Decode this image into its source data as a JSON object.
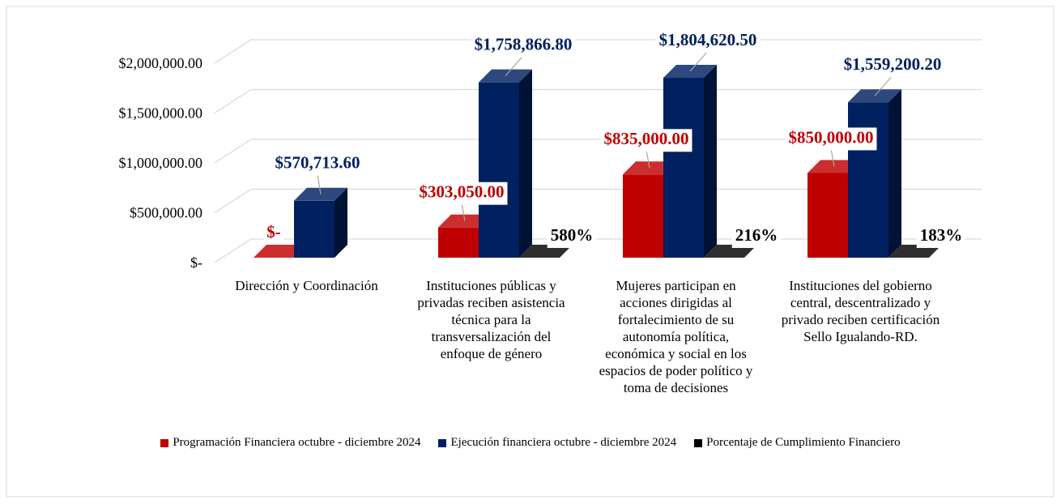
{
  "chart_data": {
    "type": "bar3d",
    "categories": [
      "Dirección y Coordinación",
      "Instituciones públicas y privadas reciben asistencia técnica para la transversalización del enfoque de género",
      "Mujeres participan en acciones dirigidas al fortalecimiento de su autonomía política, económica y social en los espacios de poder político y toma de decisiones",
      "Instituciones del gobierno central, descentralizado y privado reciben certificación Sello Igualando-RD."
    ],
    "series": [
      {
        "name": "Programación Financiera octubre - diciembre 2024",
        "color": "#c00000",
        "values": [
          0,
          303050,
          835000,
          850000
        ],
        "value_labels": [
          "$-",
          "$303,050.00",
          "$835,000.00",
          "$850,000.00"
        ]
      },
      {
        "name": "Ejecución financiera octubre - diciembre 2024",
        "color": "#002060",
        "values": [
          570713.6,
          1758866.8,
          1804620.5,
          1559200.2
        ],
        "value_labels": [
          "$570,713.60",
          "$1,758,866.80",
          "$1,804,620.50",
          "$1,559,200.20"
        ]
      },
      {
        "name": "Porcentaje de Cumplimiento Financiero",
        "color": "#000000",
        "values": [
          null,
          5.8,
          2.16,
          1.83
        ],
        "value_labels": [
          null,
          "580%",
          "216%",
          "183%"
        ]
      }
    ],
    "ylim": [
      0,
      2000000
    ],
    "yticks": [
      {
        "value": 0,
        "label": "$-"
      },
      {
        "value": 500000,
        "label": "$500,000.00"
      },
      {
        "value": 1000000,
        "label": "$1,000,000.00"
      },
      {
        "value": 1500000,
        "label": "$1,500,000.00"
      },
      {
        "value": 2000000,
        "label": "$2,000,000.00"
      }
    ],
    "grid": true,
    "legend": "bottom"
  }
}
